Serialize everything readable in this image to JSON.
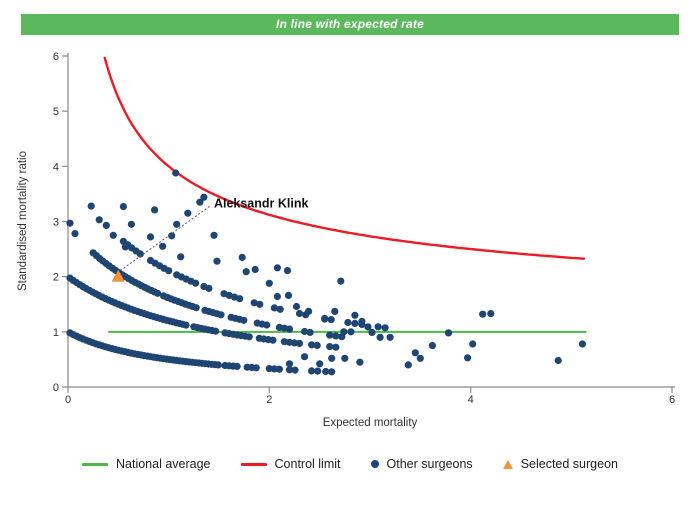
{
  "header": {
    "title": "In line with expected rate"
  },
  "colors": {
    "banner_green": "#5CB85C",
    "average_green": "#4DB848",
    "limit_red": "#ED1C24",
    "surgeon_navy": "#1F4573",
    "selected_orange": "#F39237",
    "axis_gray": "#8A8A8A",
    "text_dark": "#333333"
  },
  "legend": {
    "items": [
      {
        "label": "National average",
        "marker": "line",
        "color": "#4DB848"
      },
      {
        "label": "Control limit",
        "marker": "line",
        "color": "#ED1C24"
      },
      {
        "label": "Other surgeons",
        "marker": "dot",
        "color": "#1F4573"
      },
      {
        "label": "Selected surgeon",
        "marker": "triangle",
        "color": "#F39237"
      }
    ]
  },
  "chart_data": {
    "type": "scatter",
    "title": "In line with expected rate",
    "xlabel": "Expected mortality",
    "ylabel": "Standardised mortality ratio",
    "xlim": [
      0,
      6
    ],
    "ylim": [
      0,
      6
    ],
    "x_ticks": [
      0,
      2,
      4,
      6
    ],
    "y_ticks": [
      0,
      1,
      2,
      3,
      4,
      5,
      6
    ],
    "grid": false,
    "legend_position": "bottom",
    "national_average": {
      "y": 1,
      "x_start": 0.4,
      "x_end": 5.15
    },
    "control_limit": {
      "formula": "y = 1 + k/sqrt(x)",
      "k": 3,
      "x_start": 0.365,
      "x_end": 5.15,
      "y_end": 2.32
    },
    "surgeon_bands": [
      {
        "name": "band-1",
        "A": 1.0,
        "B": 1.0,
        "segments": [
          [
            0.02,
            1.5,
            0.032
          ],
          [
            1.56,
            1.7,
            0.04
          ],
          [
            1.78,
            1.9,
            0.045
          ],
          [
            2.0,
            2.1,
            0.05
          ],
          [
            2.2,
            2.28,
            0.055
          ],
          [
            2.42,
            2.5,
            0.06
          ],
          [
            2.56,
            2.62,
            0.06
          ]
        ]
      },
      {
        "name": "band-2",
        "A": 3.0,
        "B": 1.5,
        "segments": [
          [
            0.02,
            1.2,
            0.032
          ],
          [
            1.25,
            1.5,
            0.036
          ],
          [
            1.56,
            1.82,
            0.04
          ],
          [
            1.9,
            2.05,
            0.045
          ],
          [
            2.15,
            2.3,
            0.05
          ],
          [
            2.42,
            2.52,
            0.055
          ],
          [
            2.6,
            2.68,
            0.06
          ]
        ]
      },
      {
        "name": "band-3",
        "A": 3.6,
        "B": 1.23,
        "segments": [
          [
            0.25,
            0.9,
            0.032
          ],
          [
            0.95,
            1.3,
            0.036
          ],
          [
            1.36,
            1.55,
            0.04
          ],
          [
            1.62,
            1.78,
            0.042
          ],
          [
            1.88,
            2.02,
            0.047
          ],
          [
            2.1,
            2.2,
            0.05
          ],
          [
            2.35,
            2.45,
            0.055
          ],
          [
            2.6,
            2.72,
            0.06
          ]
        ]
      },
      {
        "name": "band-4",
        "A": 4.7,
        "B": 1.23,
        "segments": [
          [
            0.55,
            0.75,
            0.042
          ],
          [
            0.82,
            1.0,
            0.045
          ],
          [
            1.08,
            1.28,
            0.047
          ],
          [
            1.35,
            1.44,
            0.05
          ],
          [
            1.55,
            1.72,
            0.052
          ],
          [
            1.85,
            1.95,
            0.055
          ],
          [
            2.05,
            2.15,
            0.058
          ],
          [
            2.3,
            2.4,
            0.06
          ],
          [
            2.55,
            2.65,
            0.065
          ],
          [
            2.85,
            2.95,
            0.07
          ],
          [
            3.08,
            3.18,
            0.07
          ]
        ]
      }
    ],
    "other_surgeons": [
      [
        0.02,
        2.97
      ],
      [
        0.07,
        2.78
      ],
      [
        0.23,
        3.28
      ],
      [
        0.31,
        3.03
      ],
      [
        0.38,
        2.93
      ],
      [
        0.45,
        2.75
      ],
      [
        0.55,
        3.27
      ],
      [
        0.63,
        2.95
      ],
      [
        0.57,
        2.54
      ],
      [
        0.82,
        2.72
      ],
      [
        0.86,
        3.21
      ],
      [
        0.94,
        2.55
      ],
      [
        1.03,
        2.74
      ],
      [
        1.08,
        2.95
      ],
      [
        1.12,
        2.36
      ],
      [
        1.07,
        3.88
      ],
      [
        1.19,
        3.15
      ],
      [
        1.31,
        3.35
      ],
      [
        1.35,
        3.44
      ],
      [
        1.45,
        2.75
      ],
      [
        1.48,
        2.28
      ],
      [
        1.73,
        2.35
      ],
      [
        1.77,
        2.09
      ],
      [
        1.86,
        2.13
      ],
      [
        2.0,
        1.88
      ],
      [
        2.08,
        1.64
      ],
      [
        2.19,
        1.66
      ],
      [
        2.08,
        2.16
      ],
      [
        2.18,
        2.11
      ],
      [
        2.27,
        1.46
      ],
      [
        2.39,
        1.37
      ],
      [
        2.2,
        0.42
      ],
      [
        2.35,
        0.55
      ],
      [
        2.5,
        0.42
      ],
      [
        2.62,
        0.52
      ],
      [
        2.75,
        0.52
      ],
      [
        2.9,
        0.45
      ],
      [
        2.55,
        1.23
      ],
      [
        2.65,
        1.37
      ],
      [
        2.71,
        1.92
      ],
      [
        2.78,
        1.17
      ],
      [
        2.85,
        1.3
      ],
      [
        2.92,
        1.19
      ],
      [
        2.98,
        1.09
      ],
      [
        2.74,
        1.0
      ],
      [
        2.81,
        1.0
      ],
      [
        3.02,
        0.99
      ],
      [
        3.1,
        0.9
      ],
      [
        3.2,
        0.9
      ],
      [
        3.38,
        0.4
      ],
      [
        3.45,
        0.62
      ],
      [
        3.5,
        0.52
      ],
      [
        3.62,
        0.75
      ],
      [
        3.78,
        0.98
      ],
      [
        3.97,
        0.53
      ],
      [
        4.02,
        0.78
      ],
      [
        4.12,
        1.32
      ],
      [
        4.2,
        1.33
      ],
      [
        4.87,
        0.48
      ],
      [
        5.11,
        0.78
      ]
    ],
    "selected_surgeon": {
      "name": "Aleksandr Klink",
      "x": 0.5,
      "y": 2.0,
      "label_x": 1.45,
      "label_y": 3.33
    }
  }
}
